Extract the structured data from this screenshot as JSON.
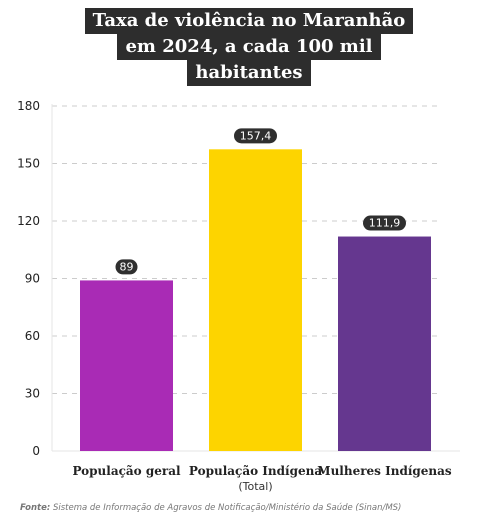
{
  "title_lines": [
    "Taxa de violência no Maranhão",
    "em 2024, a cada 100 mil",
    "habitantes"
  ],
  "source": {
    "label": "Fonte:",
    "text": "Sistema de Informação de Agravos de Notificação/Ministério da Saúde (Sinan/MS)"
  },
  "chart_data": {
    "type": "bar",
    "title": "Taxa de violência no Maranhão em 2024, a cada 100 mil habitantes",
    "categories": [
      "População geral",
      "População Indígena",
      "Mulheres Indígenas"
    ],
    "category_sublabels": [
      "",
      "(Total)",
      ""
    ],
    "values": [
      89,
      157.4,
      111.9
    ],
    "value_labels": [
      "89",
      "157,4",
      "111,9"
    ],
    "colors": [
      "#a92bb5",
      "#fdd400",
      "#65378f"
    ],
    "ylim": [
      0,
      180
    ],
    "yticks": [
      0,
      30,
      60,
      90,
      120,
      150,
      180
    ],
    "grid": true,
    "xlabel": "",
    "ylabel": ""
  }
}
